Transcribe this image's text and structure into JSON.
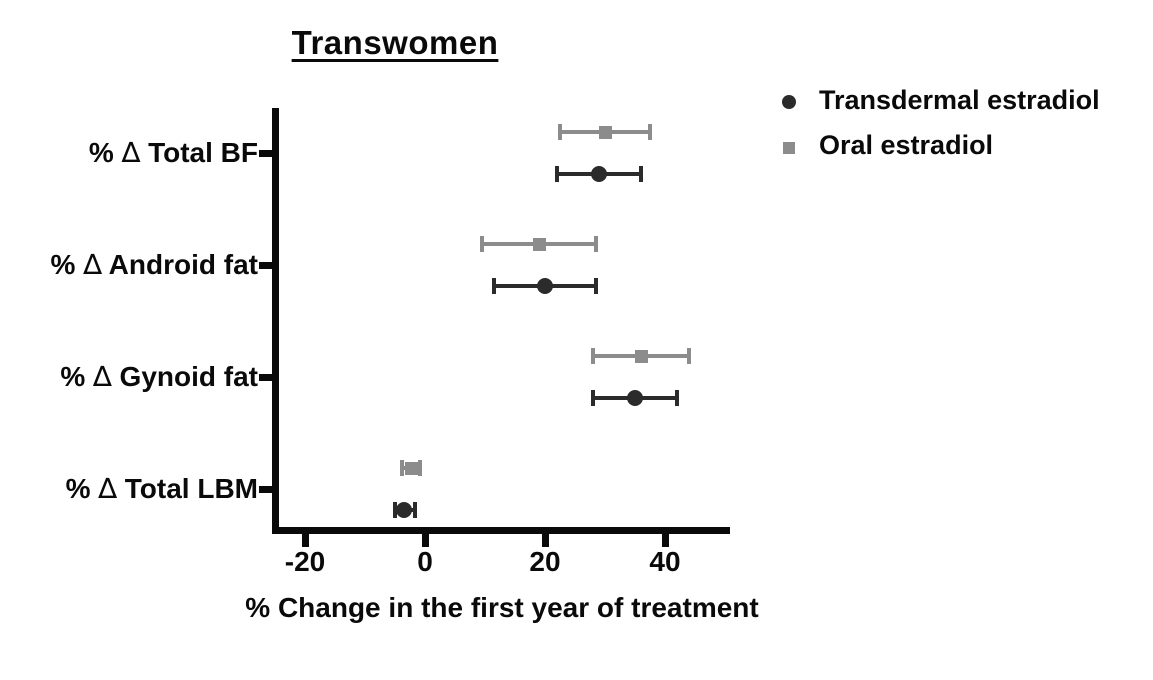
{
  "title": "Transwomen",
  "xlabel": "% Change in the first year of treatment",
  "colors": {
    "transdermal": "#2b2b2b",
    "oral": "#8c8c8c",
    "axis": "#0a0a0a"
  },
  "chart_data": {
    "type": "scatter",
    "subtype": "forest-dot-plot-with-error-bars",
    "title": "Transwomen",
    "xlabel": "% Change in the first year of treatment",
    "categories": [
      "% ∆ Total BF",
      "% ∆ Android fat",
      "% ∆ Gynoid fat",
      "% ∆ Total LBM"
    ],
    "xticks": [
      -20,
      0,
      20,
      40
    ],
    "xlim": [
      -25.5,
      50.8
    ],
    "grid": false,
    "legend_position": "top-right",
    "series": [
      {
        "name": "Transdermal estradiol",
        "marker": "circle",
        "color": "#2b2b2b",
        "values": [
          29,
          20,
          35,
          -3.5
        ],
        "ci_low": [
          22,
          11.5,
          28,
          -5
        ],
        "ci_high": [
          36,
          28.5,
          42,
          -1.7
        ]
      },
      {
        "name": "Oral estradiol",
        "marker": "square",
        "color": "#8c8c8c",
        "values": [
          30,
          19,
          36,
          -2.2
        ],
        "ci_low": [
          22.5,
          9.5,
          28,
          -3.8
        ],
        "ci_high": [
          37.5,
          28.5,
          44,
          -0.8
        ]
      }
    ]
  }
}
